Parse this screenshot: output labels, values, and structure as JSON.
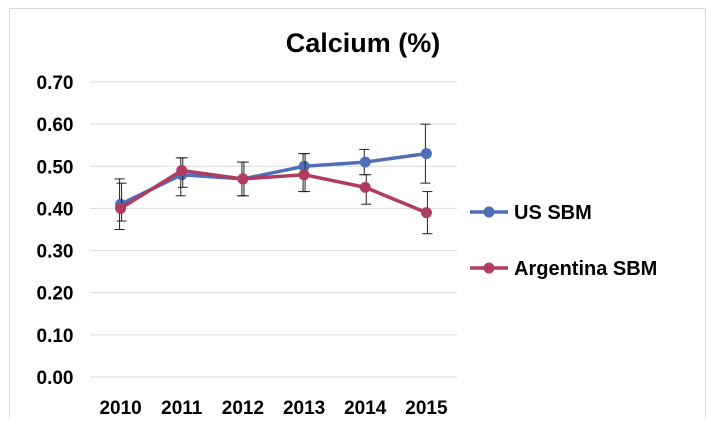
{
  "chart_data": {
    "type": "line",
    "title": "Calcium (%)",
    "xlabel": "",
    "ylabel": "",
    "categories": [
      "2010",
      "2011",
      "2012",
      "2013",
      "2014",
      "2015"
    ],
    "y_ticks": [
      "0.00",
      "0.10",
      "0.20",
      "0.30",
      "0.40",
      "0.50",
      "0.60",
      "0.70"
    ],
    "ylim": [
      0,
      0.7
    ],
    "grid": true,
    "legend_position": "right",
    "series": [
      {
        "name": "US SBM",
        "color": "#4f6db8",
        "values": [
          0.41,
          0.48,
          0.47,
          0.5,
          0.51,
          0.53
        ],
        "error_low": [
          0.35,
          0.43,
          0.43,
          0.44,
          0.48,
          0.46
        ],
        "error_high": [
          0.47,
          0.52,
          0.51,
          0.53,
          0.54,
          0.6
        ]
      },
      {
        "name": "Argentina SBM",
        "color": "#b13c62",
        "values": [
          0.4,
          0.49,
          0.47,
          0.48,
          0.45,
          0.39
        ],
        "error_low": [
          0.37,
          0.45,
          0.43,
          0.44,
          0.41,
          0.34
        ],
        "error_high": [
          0.46,
          0.52,
          0.51,
          0.53,
          0.48,
          0.44
        ]
      }
    ]
  }
}
